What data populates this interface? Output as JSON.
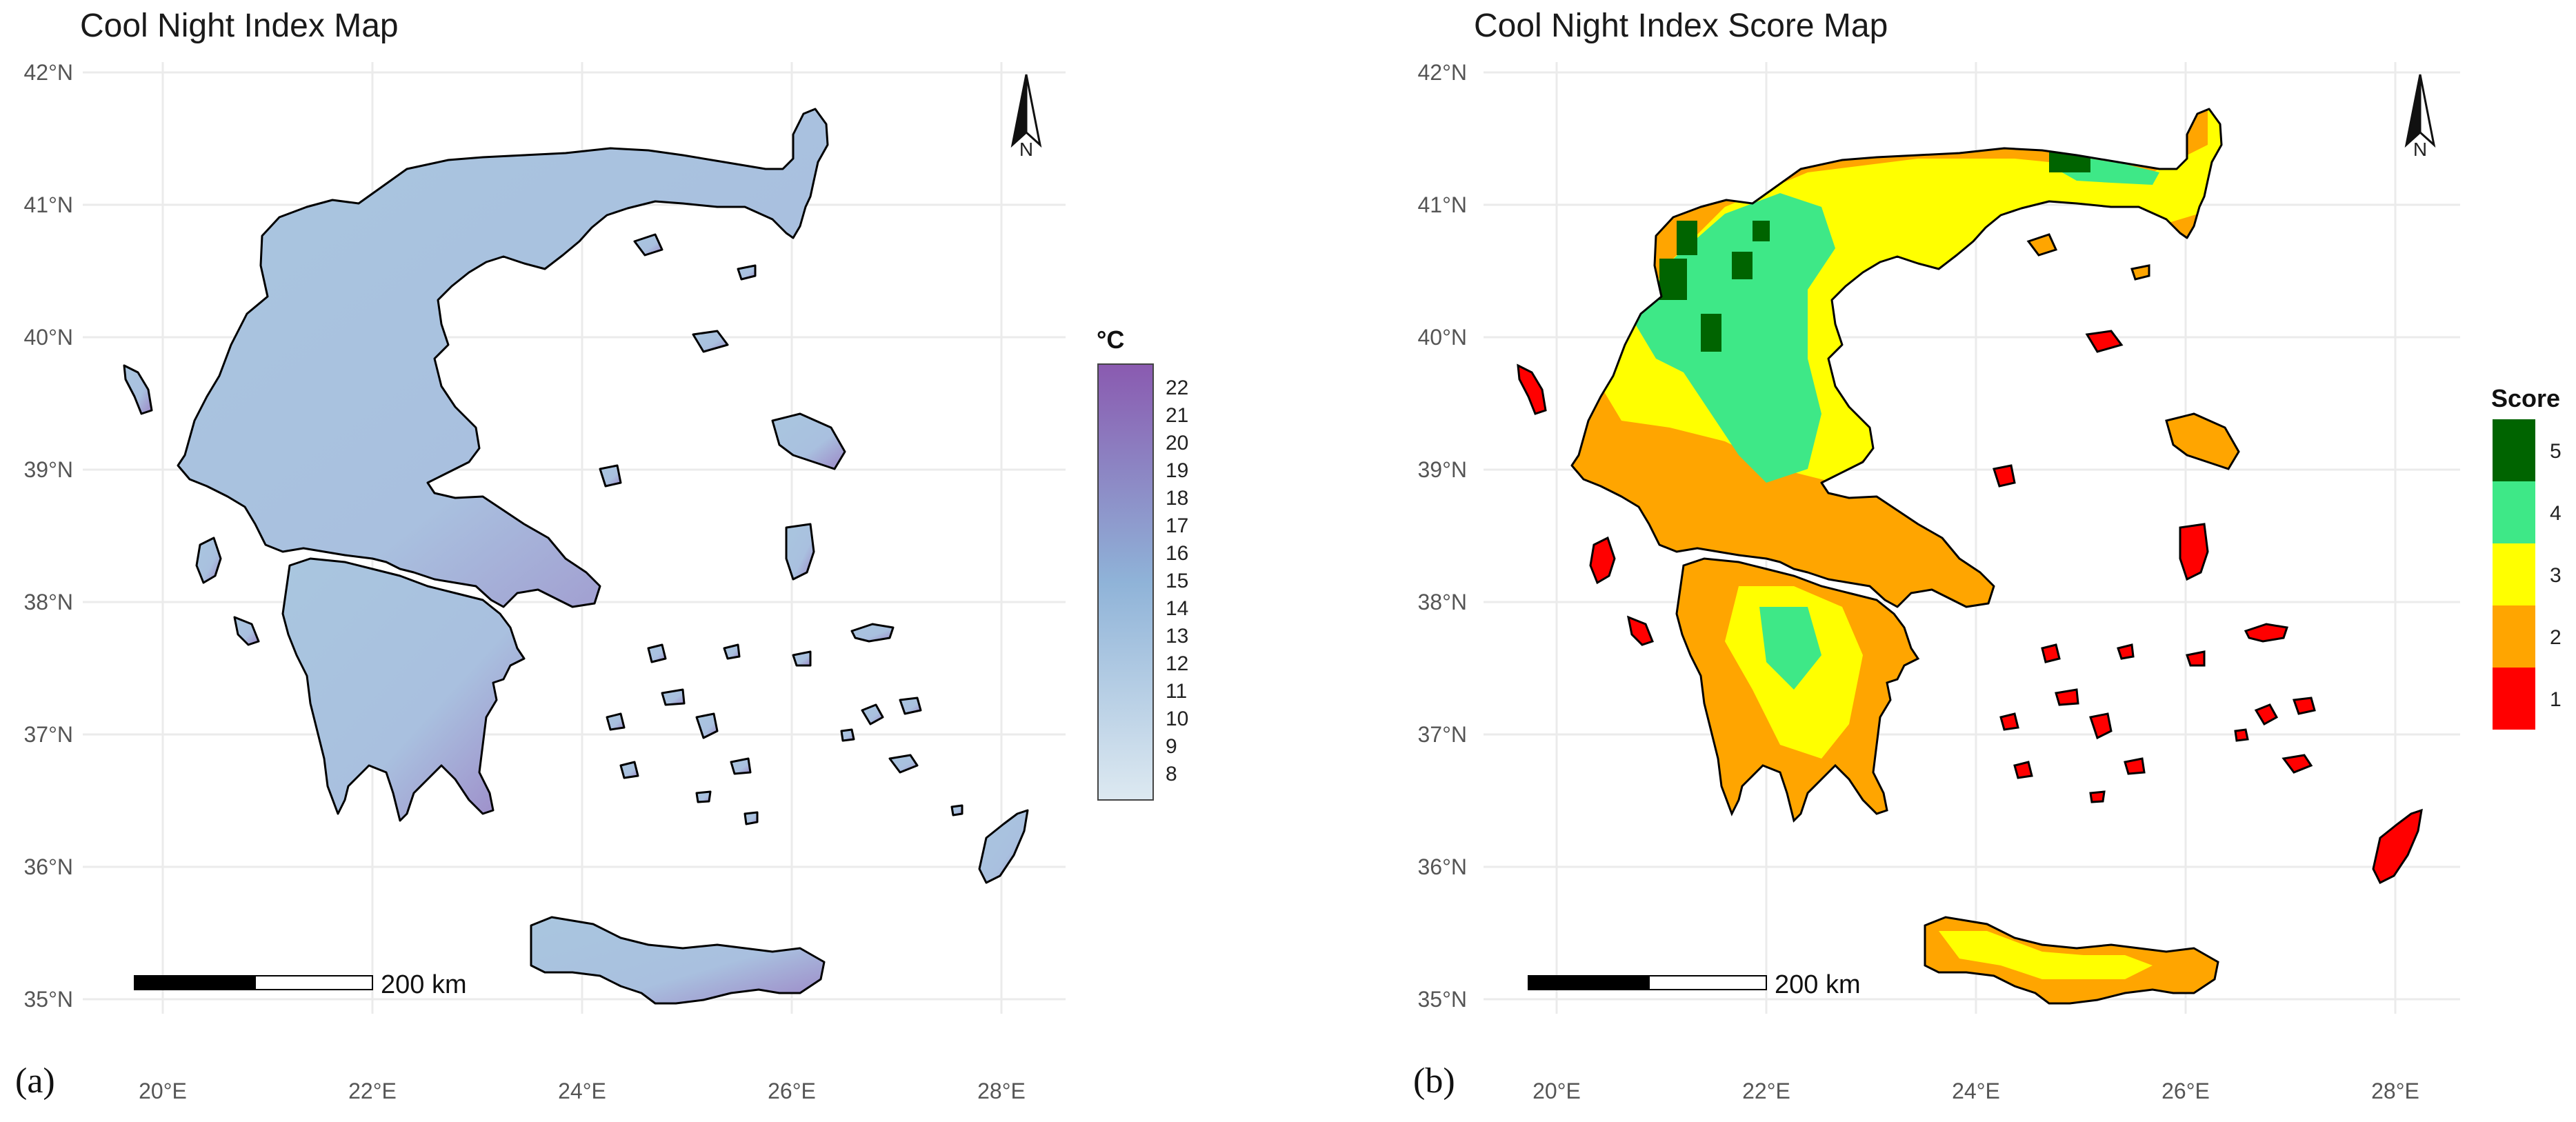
{
  "figure": {
    "panels": [
      {
        "id": "a",
        "label": "(a)",
        "title": "Cool Night Index Map",
        "legend_title": "°C",
        "legend_ticks": [
          "22",
          "21",
          "20",
          "19",
          "18",
          "17",
          "16",
          "15",
          "14",
          "13",
          "12",
          "11",
          "10",
          "9",
          "8"
        ],
        "legend_colors": {
          "high": "#8a5ab0",
          "mid": "#8fb3d8",
          "low": "#dde9f1"
        },
        "scale_label": "200 km",
        "north_label": "N"
      },
      {
        "id": "b",
        "label": "(b)",
        "title": "Cool Night Index Score Map",
        "legend_title": "Score",
        "legend_ticks": [
          "5",
          "4",
          "3",
          "2",
          "1"
        ],
        "legend_colors": [
          "#006400",
          "#3ee887",
          "#ffff00",
          "#ffa500",
          "#ff0000"
        ],
        "scale_label": "200 km",
        "north_label": "N"
      }
    ],
    "lat_labels": [
      "42°N",
      "41°N",
      "40°N",
      "39°N",
      "38°N",
      "37°N",
      "36°N",
      "35°N"
    ],
    "lon_labels": [
      "20°E",
      "22°E",
      "24°E",
      "26°E",
      "28°E"
    ]
  }
}
